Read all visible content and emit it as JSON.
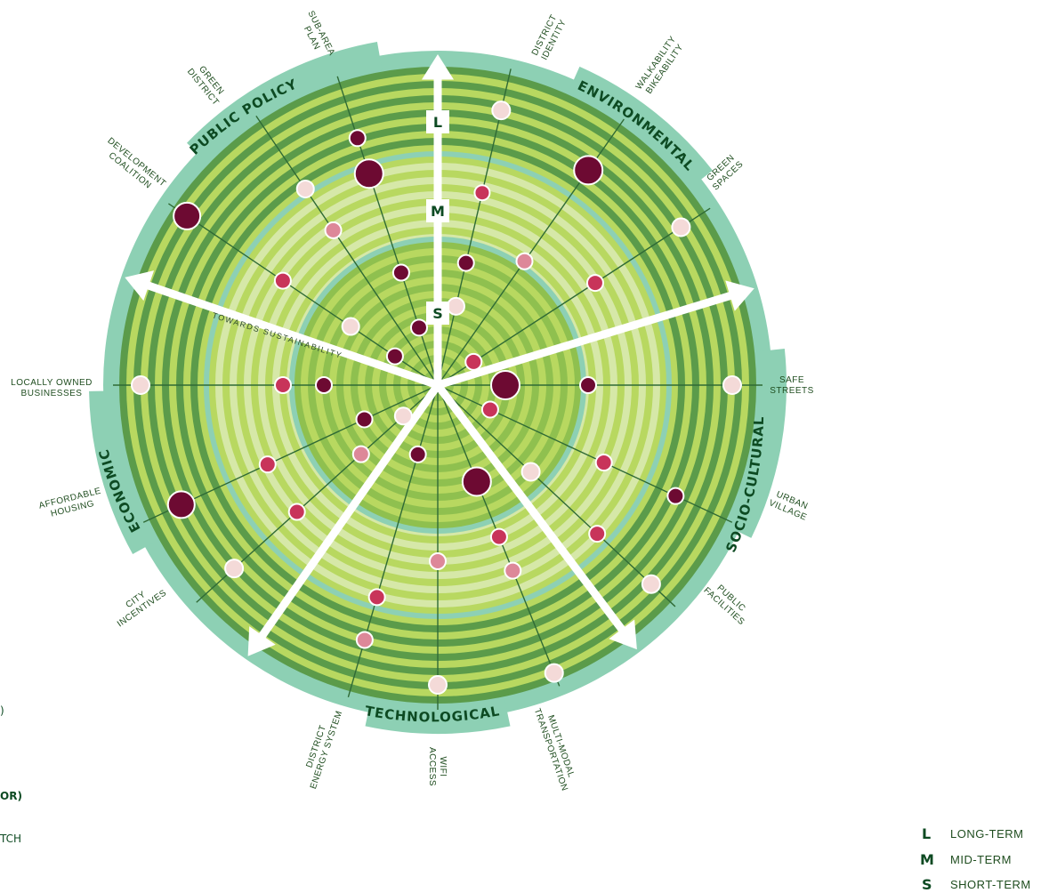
{
  "colors": {
    "dark_green": "#5b9b4a",
    "mid_green": "#8fc04f",
    "light_green": "#b8d860",
    "pale_green": "#d6e8a8",
    "teal": "#8dd0b4",
    "text_green": "#0d4a22",
    "dot_dark": "#6d0a32",
    "dot_mid": "#c8345a",
    "dot_light": "#dd8899",
    "dot_pale": "#f4dad8"
  },
  "categories": [
    "PUBLIC POLICY",
    "ENVIRONMENTAL",
    "SOCIO-CULTURAL",
    "TECHNOLOGICAL",
    "ECONOMIC"
  ],
  "axis_labels": [
    "L",
    "M",
    "S"
  ],
  "towards_label": "TOWARDS SUSTAINABILITY",
  "spokes": [
    {
      "lines": [
        "SUB-AREA",
        "PLAN"
      ]
    },
    {
      "lines": [
        "DISTRICT",
        "IDENTITY"
      ]
    },
    {
      "lines": [
        "WALKABILITY",
        "BIKEABILITY"
      ]
    },
    {
      "lines": [
        "GREEN",
        "SPACES"
      ]
    },
    {
      "lines": [
        "SAFE",
        "STREETS"
      ]
    },
    {
      "lines": [
        "URBAN",
        "VILLAGE"
      ]
    },
    {
      "lines": [
        "PUBLIC",
        "FACILITIES"
      ]
    },
    {
      "lines": [
        "MULTI-MODAL",
        "TRANSPORTATION"
      ]
    },
    {
      "lines": [
        "WIFI",
        "ACCESS"
      ]
    },
    {
      "lines": [
        "DISTRICT",
        "ENERGY SYSTEM"
      ]
    },
    {
      "lines": [
        "CITY",
        "INCENTIVES"
      ]
    },
    {
      "lines": [
        "AFFORDABLE",
        "HOUSING"
      ]
    },
    {
      "lines": [
        "LOCALLY OWNED",
        "BUSINESSES"
      ]
    },
    {
      "lines": [
        "DEVELOPMENT",
        "COALITION"
      ]
    },
    {
      "lines": [
        "GREEN",
        "DISTRICT"
      ]
    }
  ],
  "legend": [
    {
      "key": "L",
      "text": "LONG-TERM"
    },
    {
      "key": "M",
      "text": "MID-TERM"
    },
    {
      "key": "S",
      "text": "SHORT-TERM"
    }
  ],
  "left_fragments": [
    ")",
    "OR)",
    "TCH"
  ]
}
